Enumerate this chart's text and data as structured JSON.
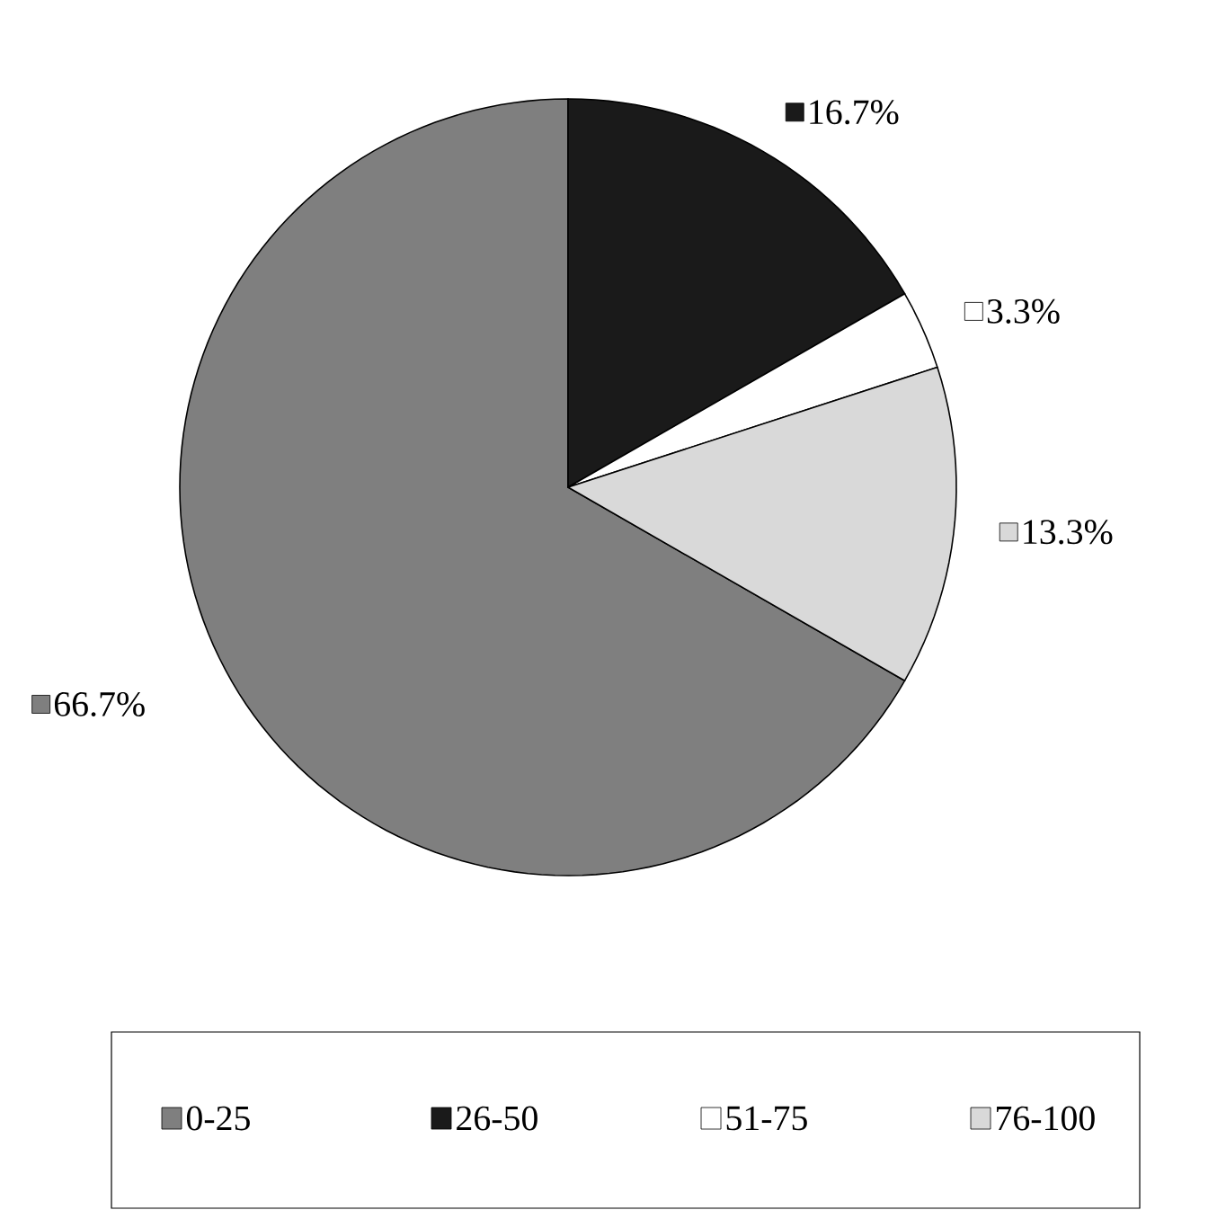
{
  "chart_data": {
    "type": "pie",
    "categories": [
      "0-25",
      "26-50",
      "51-75",
      "76-100"
    ],
    "values": [
      66.7,
      16.7,
      3.3,
      13.3
    ],
    "value_labels": [
      "66.7%",
      "16.7%",
      "3.3%",
      "13.3%"
    ],
    "colors": [
      "#7f7f7f",
      "#1a1a1a",
      "#ffffff",
      "#d9d9d9"
    ],
    "legend": "bottom"
  }
}
